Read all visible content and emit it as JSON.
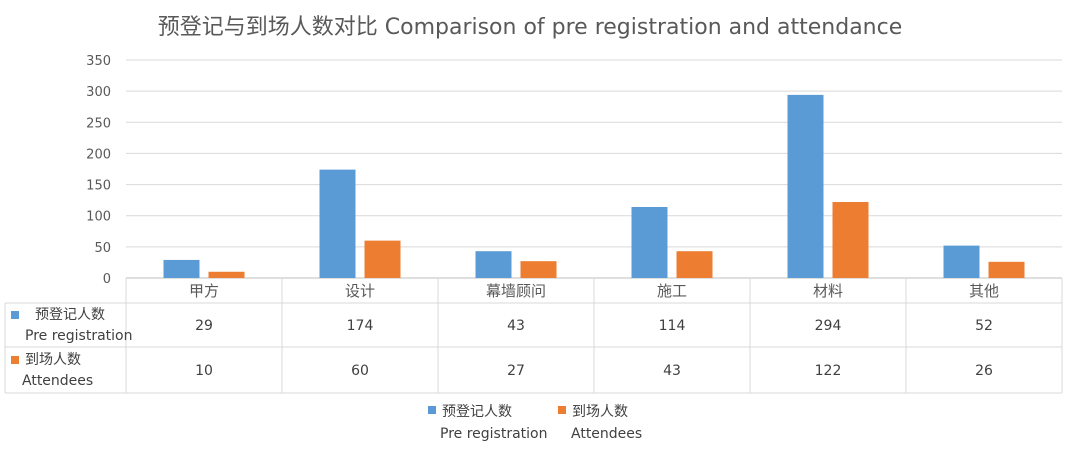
{
  "chart_data": {
    "type": "bar",
    "title": "预登记与到场人数对比 Comparison of pre registration and attendance",
    "categories": [
      "甲方",
      "设计",
      "幕墙顾问",
      "施工",
      "材料",
      "其他"
    ],
    "series": [
      {
        "name": "预登记人数",
        "name_en": "Pre registration",
        "color": "#5B9BD5",
        "values": [
          29,
          174,
          43,
          114,
          294,
          52
        ]
      },
      {
        "name": "到场人数",
        "name_en": "Attendees",
        "color": "#ED7D31",
        "values": [
          10,
          60,
          27,
          43,
          122,
          26
        ]
      }
    ],
    "ylim": [
      0,
      350
    ],
    "yticks": [
      0,
      50,
      100,
      150,
      200,
      250,
      300,
      350
    ],
    "grid": true,
    "legend": "bottom",
    "data_table": true
  }
}
